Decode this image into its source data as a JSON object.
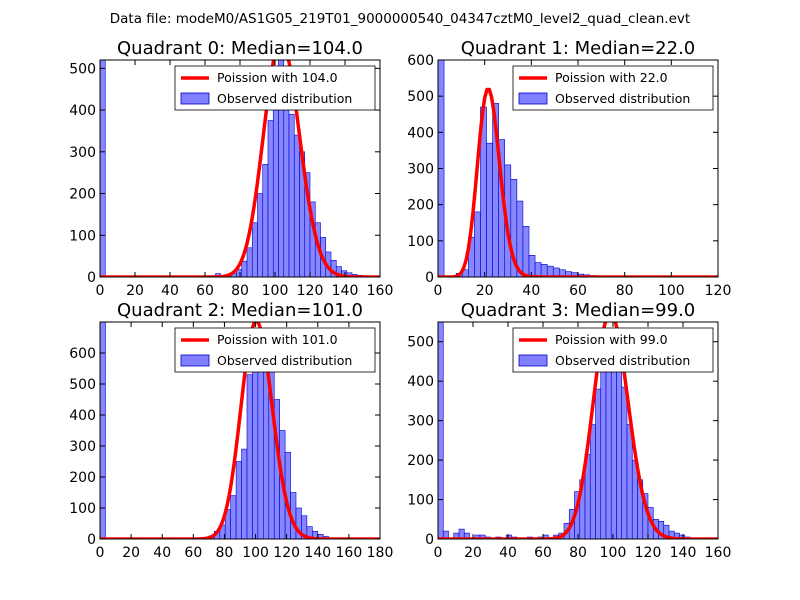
{
  "figure_title": "Data file: modeM0/AS1G05_219T01_9000000540_04347cztM0_level2_quad_clean.evt",
  "colors": {
    "hist_fill": "#7f7fff",
    "hist_edge": "#0000cc",
    "poisson_line": "#ff0000",
    "legend_border": "#555555"
  },
  "chart_data": [
    {
      "type": "histogram",
      "title": "Quadrant 0: Median=104.0",
      "xlim": [
        0,
        160
      ],
      "ylim": [
        0,
        520
      ],
      "xticks": [
        0,
        20,
        40,
        60,
        80,
        100,
        120,
        140,
        160
      ],
      "yticks": [
        0,
        100,
        200,
        300,
        400,
        500
      ],
      "bin_width": 3,
      "bins": [
        [
          0,
          520
        ],
        [
          66,
          8
        ],
        [
          72,
          5
        ],
        [
          75,
          8
        ],
        [
          78,
          18
        ],
        [
          81,
          38
        ],
        [
          84,
          70
        ],
        [
          87,
          130
        ],
        [
          90,
          200
        ],
        [
          93,
          270
        ],
        [
          96,
          375
        ],
        [
          99,
          455
        ],
        [
          102,
          525
        ],
        [
          105,
          460
        ],
        [
          108,
          390
        ],
        [
          111,
          340
        ],
        [
          114,
          300
        ],
        [
          117,
          250
        ],
        [
          120,
          180
        ],
        [
          123,
          130
        ],
        [
          126,
          95
        ],
        [
          129,
          60
        ],
        [
          132,
          40
        ],
        [
          135,
          25
        ],
        [
          138,
          15
        ],
        [
          141,
          10
        ],
        [
          144,
          6
        ],
        [
          147,
          4
        ],
        [
          150,
          2
        ]
      ],
      "poisson_mean": 104.0,
      "legend": {
        "line": "Poission with 104.0",
        "bars": "Observed distribution"
      }
    },
    {
      "type": "histogram",
      "title": "Quadrant 1: Median=22.0",
      "xlim": [
        0,
        120
      ],
      "ylim": [
        0,
        600
      ],
      "xticks": [
        0,
        20,
        40,
        60,
        80,
        100,
        120
      ],
      "yticks": [
        0,
        100,
        200,
        300,
        400,
        500,
        600
      ],
      "bin_width": 2.6,
      "bins": [
        [
          0,
          600
        ],
        [
          7.8,
          10
        ],
        [
          10.4,
          20
        ],
        [
          13,
          110
        ],
        [
          15.6,
          180
        ],
        [
          18.2,
          470
        ],
        [
          20.8,
          370
        ],
        [
          23.4,
          480
        ],
        [
          26,
          380
        ],
        [
          28.6,
          310
        ],
        [
          31.2,
          270
        ],
        [
          33.8,
          210
        ],
        [
          36.4,
          140
        ],
        [
          39,
          60
        ],
        [
          41.6,
          40
        ],
        [
          44.2,
          35
        ],
        [
          46.8,
          30
        ],
        [
          49.4,
          25
        ],
        [
          52,
          20
        ],
        [
          54.6,
          15
        ],
        [
          57.2,
          12
        ],
        [
          59.8,
          8
        ],
        [
          62.4,
          6
        ],
        [
          65,
          4
        ],
        [
          67.6,
          3
        ],
        [
          70.2,
          2
        ]
      ],
      "poisson_mean": 22.0,
      "legend": {
        "line": "Poission with 22.0",
        "bars": "Observed distribution"
      }
    },
    {
      "type": "histogram",
      "title": "Quadrant 2: Median=101.0",
      "xlim": [
        0,
        180
      ],
      "ylim": [
        0,
        700
      ],
      "xticks": [
        0,
        20,
        40,
        60,
        80,
        100,
        120,
        140,
        160,
        180
      ],
      "yticks": [
        0,
        100,
        200,
        300,
        400,
        500,
        600
      ],
      "bin_width": 3.5,
      "bins": [
        [
          0,
          700
        ],
        [
          66.5,
          5
        ],
        [
          70,
          10
        ],
        [
          73.5,
          25
        ],
        [
          77,
          45
        ],
        [
          80.5,
          95
        ],
        [
          84,
          140
        ],
        [
          87.5,
          250
        ],
        [
          91,
          290
        ],
        [
          94.5,
          530
        ],
        [
          98,
          620
        ],
        [
          101.5,
          650
        ],
        [
          105,
          580
        ],
        [
          108.5,
          540
        ],
        [
          112,
          450
        ],
        [
          115.5,
          350
        ],
        [
          119,
          280
        ],
        [
          122.5,
          150
        ],
        [
          126,
          100
        ],
        [
          129.5,
          75
        ],
        [
          133,
          40
        ],
        [
          136.5,
          25
        ],
        [
          140,
          15
        ],
        [
          143.5,
          8
        ],
        [
          147,
          4
        ],
        [
          150.5,
          2
        ]
      ],
      "poisson_mean": 101.0,
      "legend": {
        "line": "Poission with 101.0",
        "bars": "Observed distribution"
      }
    },
    {
      "type": "histogram",
      "title": "Quadrant 3: Median=99.0",
      "xlim": [
        0,
        160
      ],
      "ylim": [
        0,
        550
      ],
      "xticks": [
        0,
        20,
        40,
        60,
        80,
        100,
        120,
        140,
        160
      ],
      "yticks": [
        0,
        100,
        200,
        300,
        400,
        500
      ],
      "bin_width": 3,
      "bins": [
        [
          0,
          550
        ],
        [
          3,
          20
        ],
        [
          9,
          15
        ],
        [
          12,
          25
        ],
        [
          15,
          15
        ],
        [
          21,
          10
        ],
        [
          24,
          10
        ],
        [
          27,
          5
        ],
        [
          33,
          5
        ],
        [
          39,
          10
        ],
        [
          42,
          5
        ],
        [
          51,
          5
        ],
        [
          57,
          5
        ],
        [
          60,
          10
        ],
        [
          66,
          10
        ],
        [
          69,
          15
        ],
        [
          72,
          40
        ],
        [
          75,
          75
        ],
        [
          78,
          120
        ],
        [
          81,
          150
        ],
        [
          84,
          215
        ],
        [
          87,
          290
        ],
        [
          90,
          380
        ],
        [
          93,
          470
        ],
        [
          96,
          530
        ],
        [
          99,
          520
        ],
        [
          102,
          450
        ],
        [
          105,
          385
        ],
        [
          108,
          290
        ],
        [
          111,
          200
        ],
        [
          114,
          150
        ],
        [
          117,
          115
        ],
        [
          120,
          80
        ],
        [
          123,
          50
        ],
        [
          126,
          45
        ],
        [
          129,
          35
        ],
        [
          132,
          20
        ],
        [
          135,
          15
        ],
        [
          138,
          10
        ],
        [
          141,
          5
        ],
        [
          144,
          3
        ]
      ],
      "poisson_mean": 99.0,
      "legend": {
        "line": "Poission with 99.0",
        "bars": "Observed distribution"
      }
    }
  ]
}
